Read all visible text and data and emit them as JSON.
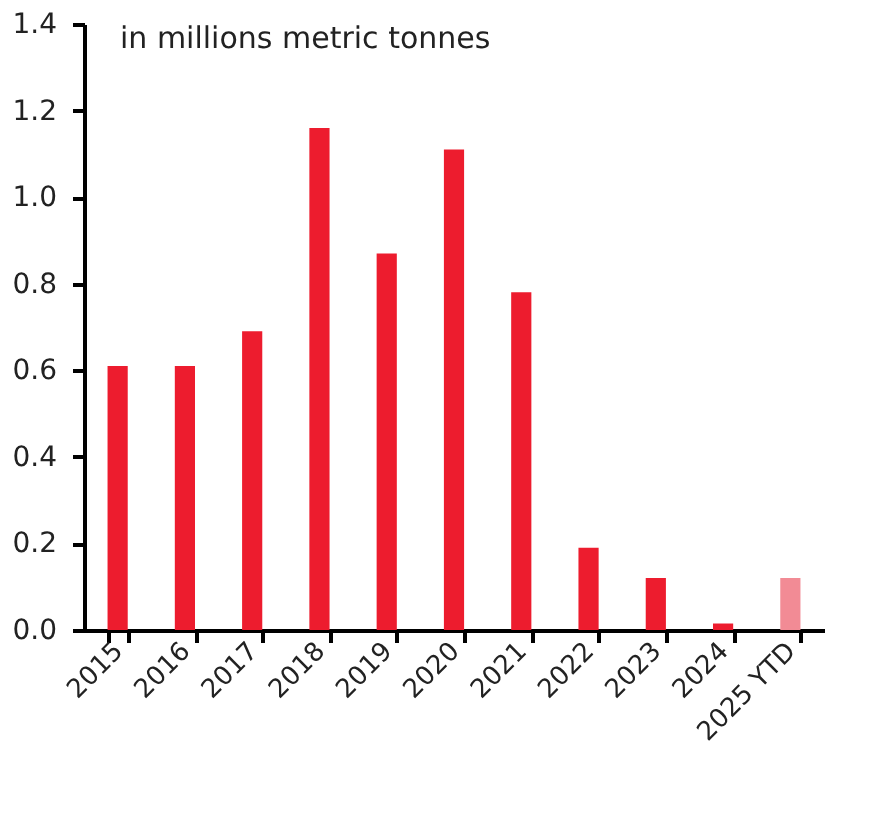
{
  "chart_data": {
    "type": "bar",
    "annotations": [
      "in millions metric tonnes"
    ],
    "categories": [
      "2015",
      "2016",
      "2017",
      "2018",
      "2019",
      "2020",
      "2021",
      "2022",
      "2023",
      "2024",
      "2025 YTD"
    ],
    "values": [
      0.61,
      0.61,
      0.69,
      1.16,
      0.87,
      1.11,
      0.78,
      0.19,
      0.12,
      0.015,
      0.12
    ],
    "colors": [
      "#ed1c2e",
      "#ed1c2e",
      "#ed1c2e",
      "#ed1c2e",
      "#ed1c2e",
      "#ed1c2e",
      "#ed1c2e",
      "#ed1c2e",
      "#ed1c2e",
      "#ed1c2e",
      "#f28b95"
    ],
    "ylim": [
      0,
      1.4
    ],
    "yticks": [
      {
        "value": 0,
        "label": "0.0"
      },
      0.2,
      0.4,
      0.6,
      0.8,
      {
        "value": 1,
        "label": "1.0"
      },
      1.2,
      1.4
    ],
    "grid": false
  }
}
